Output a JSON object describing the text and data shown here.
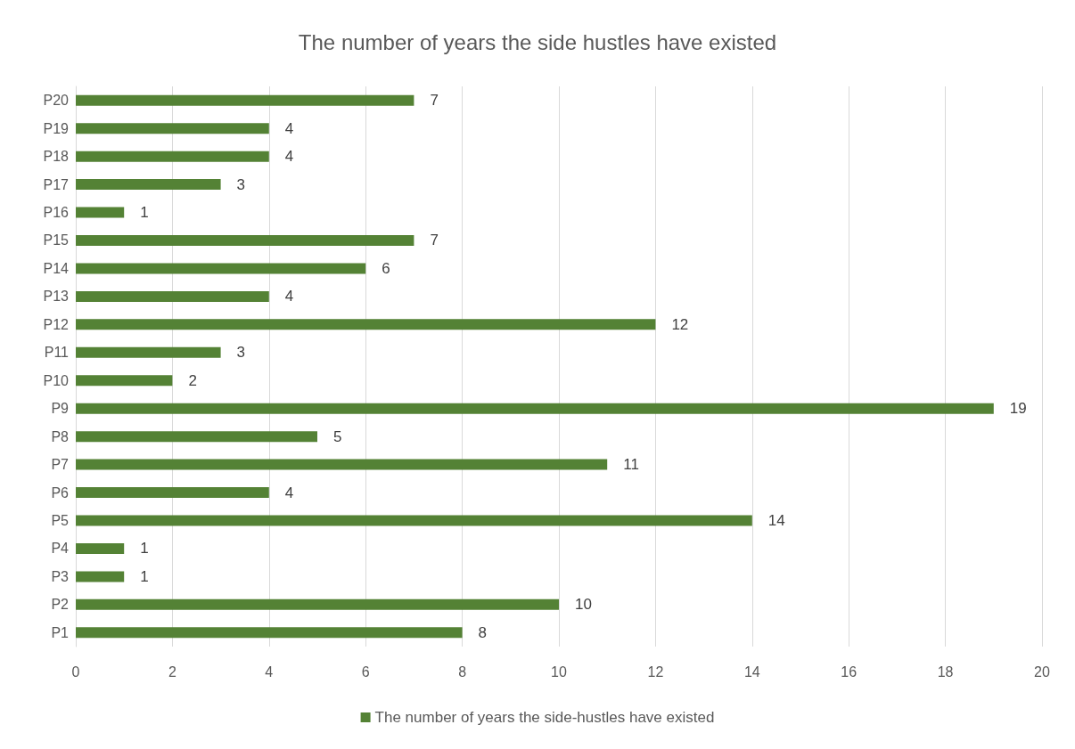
{
  "chart_data": {
    "type": "bar",
    "title": "The number of years the side hustles have existed",
    "orientation": "horizontal",
    "categories": [
      "P20",
      "P19",
      "P18",
      "P17",
      "P16",
      "P15",
      "P14",
      "P13",
      "P12",
      "P11",
      "P10",
      "P9",
      "P8",
      "P7",
      "P6",
      "P5",
      "P4",
      "P3",
      "P2",
      "P1"
    ],
    "series": [
      {
        "name": "The number of years the side-hustles have existed",
        "color": "#548235",
        "values": [
          7,
          4,
          4,
          3,
          1,
          7,
          6,
          4,
          12,
          3,
          2,
          19,
          5,
          11,
          4,
          14,
          1,
          1,
          10,
          8
        ]
      }
    ],
    "xlim": [
      0,
      20
    ],
    "xticks": [
      0,
      2,
      4,
      6,
      8,
      10,
      12,
      14,
      16,
      18,
      20
    ],
    "grid": "x",
    "legend": "bottom",
    "data_labels": true
  }
}
